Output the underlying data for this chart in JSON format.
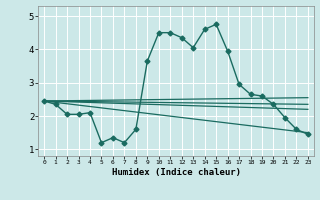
{
  "title": "",
  "xlabel": "Humidex (Indice chaleur)",
  "ylabel": "",
  "bg_color": "#cce8e8",
  "line_color": "#1a6b60",
  "grid_color": "#b8d8d8",
  "xlim": [
    -0.5,
    23.5
  ],
  "ylim": [
    0.8,
    5.3
  ],
  "yticks": [
    1,
    2,
    3,
    4,
    5
  ],
  "xticks": [
    0,
    1,
    2,
    3,
    4,
    5,
    6,
    7,
    8,
    9,
    10,
    11,
    12,
    13,
    14,
    15,
    16,
    17,
    18,
    19,
    20,
    21,
    22,
    23
  ],
  "lines": [
    {
      "x": [
        0,
        1,
        2,
        3,
        4,
        5,
        6,
        7,
        8,
        9,
        10,
        11,
        12,
        13,
        14,
        15,
        16,
        17,
        18,
        19,
        20,
        21,
        22,
        23
      ],
      "y": [
        2.45,
        2.35,
        2.05,
        2.05,
        2.1,
        1.2,
        1.35,
        1.2,
        1.6,
        3.65,
        4.5,
        4.5,
        4.35,
        4.05,
        4.6,
        4.75,
        3.95,
        2.95,
        2.65,
        2.6,
        2.35,
        1.95,
        1.6,
        1.45
      ],
      "marker": "D",
      "markersize": 2.5,
      "linewidth": 1.0
    },
    {
      "x": [
        0,
        23
      ],
      "y": [
        2.45,
        2.55
      ],
      "marker": null,
      "linewidth": 0.9
    },
    {
      "x": [
        0,
        23
      ],
      "y": [
        2.45,
        2.35
      ],
      "marker": null,
      "linewidth": 0.9
    },
    {
      "x": [
        0,
        23
      ],
      "y": [
        2.45,
        2.2
      ],
      "marker": null,
      "linewidth": 0.9
    },
    {
      "x": [
        0,
        23
      ],
      "y": [
        2.45,
        1.5
      ],
      "marker": null,
      "linewidth": 0.9
    }
  ]
}
